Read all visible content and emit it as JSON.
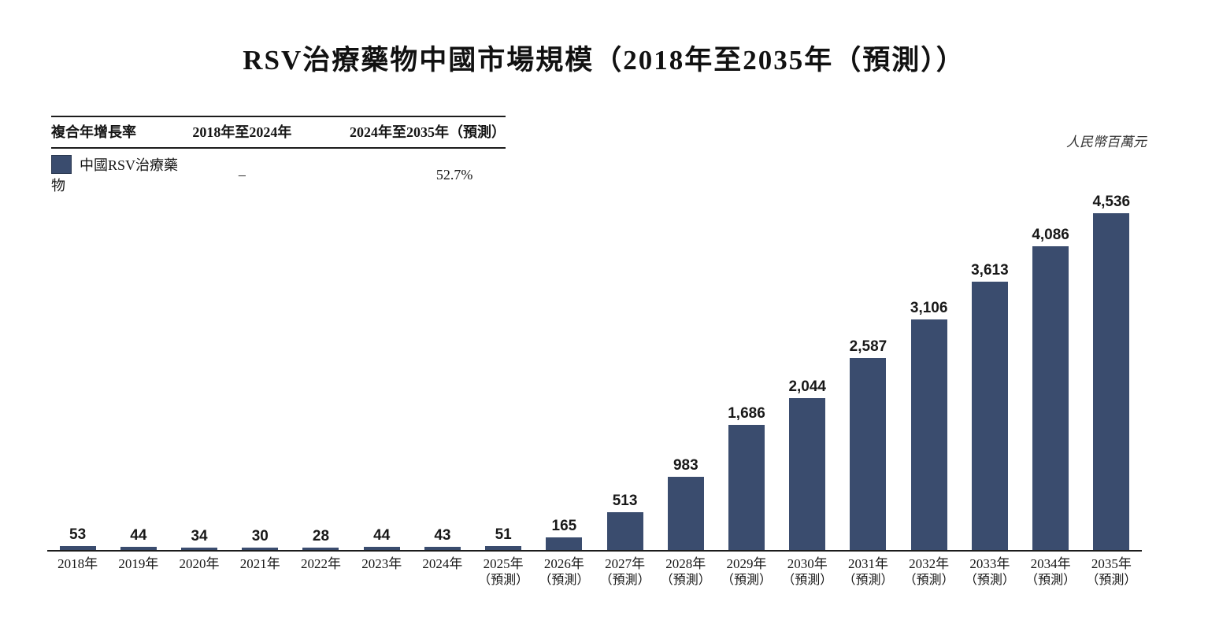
{
  "page": {
    "title": "RSV治療藥物中國市場規模（2018年至2035年（預測））",
    "unit_label": "人民幣百萬元"
  },
  "cagr_table": {
    "col_metric": "複合年增長率",
    "col_period1": "2018年至2024年",
    "col_period2": "2024年至2035年（預測）",
    "row": {
      "series": "中國RSV治療藥物",
      "period1_value": "–",
      "period2_value": "52.7%",
      "swatch_color": "#3a4c6e"
    }
  },
  "chart_data": {
    "type": "bar",
    "title": "RSV治療藥物中國市場規模（2018年至2035年（預測））",
    "series_name": "中國RSV治療藥物",
    "unit": "人民幣百萬元",
    "categories": [
      "2018年",
      "2019年",
      "2020年",
      "2021年",
      "2022年",
      "2023年",
      "2024年",
      "2025年（預測）",
      "2026年（預測）",
      "2027年（預測）",
      "2028年（預測）",
      "2029年（預測）",
      "2030年（預測）",
      "2031年（預測）",
      "2032年（預測）",
      "2033年（預測）",
      "2034年（預測）",
      "2035年（預測）"
    ],
    "values": [
      53,
      44,
      34,
      30,
      28,
      44,
      43,
      51,
      165,
      513,
      983,
      1686,
      2044,
      2587,
      3106,
      3613,
      4086,
      4536
    ],
    "value_labels": [
      "53",
      "44",
      "34",
      "30",
      "28",
      "44",
      "43",
      "51",
      "165",
      "513",
      "983",
      "1,686",
      "2,044",
      "2,587",
      "3,106",
      "3,613",
      "4,086",
      "4,536"
    ],
    "ylim": [
      0,
      4800
    ],
    "bar_color": "#3a4c6e",
    "grid": false,
    "legend_position": "top-left-table",
    "xlabel": "",
    "ylabel": "人民幣百萬元"
  }
}
